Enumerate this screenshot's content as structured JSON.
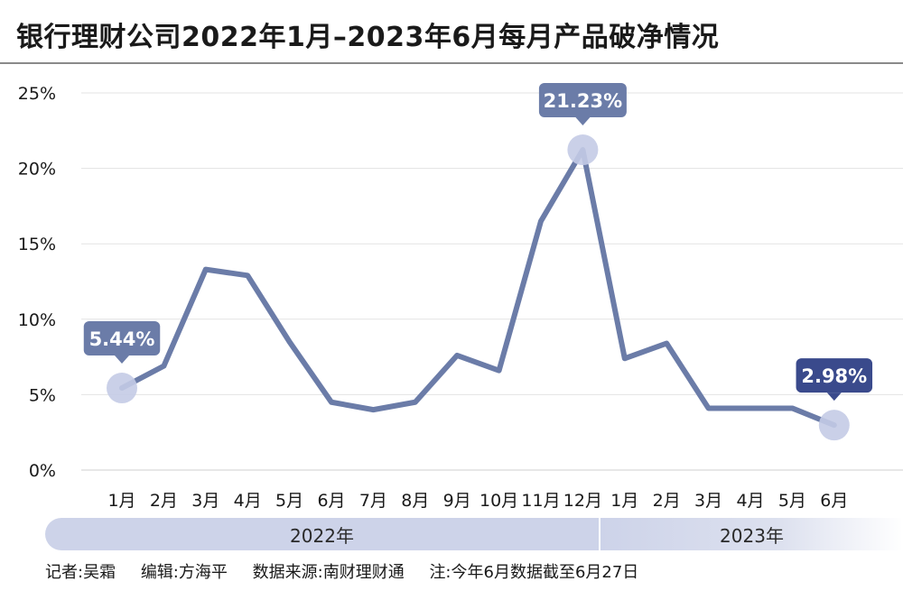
{
  "title": "银行理财公司2022年1月–2023年6月每月产品破净情况",
  "colors": {
    "line": "#6b7ca8",
    "marker": "#c4cbe6",
    "callout": "#6b7ca8",
    "callout_last": "#3a4a8c",
    "grid": "#e3e3e3"
  },
  "chart_data": {
    "type": "line",
    "categories": [
      "1月",
      "2月",
      "3月",
      "4月",
      "5月",
      "6月",
      "7月",
      "8月",
      "9月",
      "10月",
      "11月",
      "12月",
      "1月",
      "2月",
      "3月",
      "4月",
      "5月",
      "6月"
    ],
    "groups": [
      {
        "label": "2022年",
        "months": 12
      },
      {
        "label": "2023年",
        "months": 6
      }
    ],
    "values": [
      5.44,
      6.9,
      13.3,
      12.9,
      8.5,
      4.5,
      4.0,
      4.5,
      7.6,
      6.6,
      16.5,
      21.23,
      7.4,
      8.4,
      4.1,
      4.1,
      4.1,
      2.98
    ],
    "ylim": [
      0,
      25
    ],
    "yticks": [
      0,
      5,
      10,
      15,
      20,
      25
    ],
    "ytick_labels": [
      "0%",
      "5%",
      "10%",
      "15%",
      "20%",
      "25%"
    ],
    "xlabel": "",
    "ylabel": "",
    "grid": true,
    "annotations": [
      {
        "index": 0,
        "label": "5.44%",
        "style": "normal"
      },
      {
        "index": 11,
        "label": "21.23%",
        "style": "normal"
      },
      {
        "index": 17,
        "label": "2.98%",
        "style": "dark"
      }
    ]
  },
  "footer": {
    "reporter": "记者:吴霜",
    "editor": "编辑:方海平",
    "source": "数据来源:南财理财通",
    "note": "注:今年6月数据截至6月27日"
  }
}
